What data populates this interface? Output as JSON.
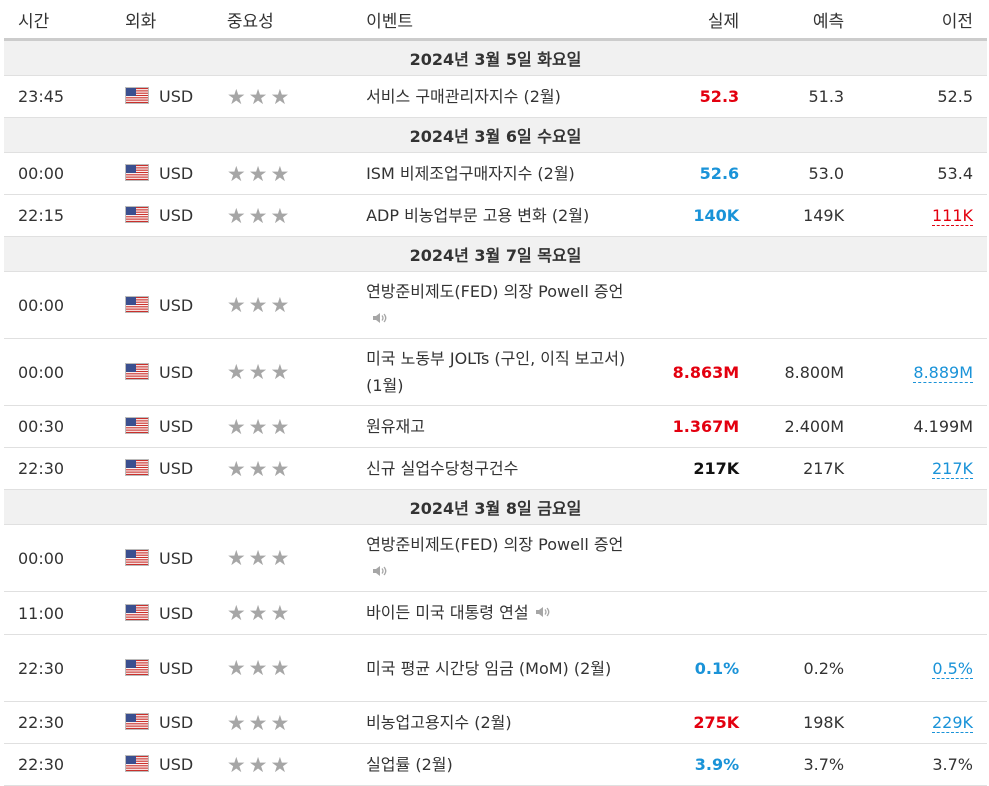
{
  "headers": {
    "time": "시간",
    "currency": "외화",
    "importance": "중요성",
    "event": "이벤트",
    "actual": "실제",
    "forecast": "예측",
    "previous": "이전"
  },
  "days": [
    {
      "label": "2024년 3월 5일 화요일",
      "rows": [
        {
          "time": "23:45",
          "currency": "USD",
          "event": "서비스 구매관리자지수 (2월)",
          "actual": "52.3",
          "forecast": "51.3",
          "previous": "52.5"
        }
      ]
    },
    {
      "label": "2024년 3월 6일 수요일",
      "rows": [
        {
          "time": "00:00",
          "currency": "USD",
          "event": "ISM 비제조업구매자지수 (2월)",
          "actual": "52.6",
          "forecast": "53.0",
          "previous": "53.4"
        },
        {
          "time": "22:15",
          "currency": "USD",
          "event": "ADP 비농업부문 고용 변화 (2월)",
          "actual": "140K",
          "forecast": "149K",
          "previous": "111K"
        }
      ]
    },
    {
      "label": "2024년 3월 7일 목요일",
      "rows": [
        {
          "time": "00:00",
          "currency": "USD",
          "event": "연방준비제도(FED) 의장 Powell 증언",
          "actual": "",
          "forecast": "",
          "previous": ""
        },
        {
          "time": "00:00",
          "currency": "USD",
          "event": "미국 노동부 JOLTs (구인, 이직 보고서) (1월)",
          "actual": "8.863M",
          "forecast": "8.800M",
          "previous": "8.889M"
        },
        {
          "time": "00:30",
          "currency": "USD",
          "event": "원유재고",
          "actual": "1.367M",
          "forecast": "2.400M",
          "previous": "4.199M"
        },
        {
          "time": "22:30",
          "currency": "USD",
          "event": "신규 실업수당청구건수",
          "actual": "217K",
          "forecast": "217K",
          "previous": "217K"
        }
      ]
    },
    {
      "label": "2024년 3월 8일 금요일",
      "rows": [
        {
          "time": "00:00",
          "currency": "USD",
          "event": "연방준비제도(FED) 의장 Powell 증언",
          "actual": "",
          "forecast": "",
          "previous": ""
        },
        {
          "time": "11:00",
          "currency": "USD",
          "event": "바이든 미국 대통령 연설",
          "actual": "",
          "forecast": "",
          "previous": ""
        },
        {
          "time": "22:30",
          "currency": "USD",
          "event": "미국 평균 시간당 임금 (MoM) (2월)",
          "actual": "0.1%",
          "forecast": "0.2%",
          "previous": "0.5%"
        },
        {
          "time": "22:30",
          "currency": "USD",
          "event": "비농업고용지수 (2월)",
          "actual": "275K",
          "forecast": "198K",
          "previous": "229K"
        },
        {
          "time": "22:30",
          "currency": "USD",
          "event": "실업률 (2월)",
          "actual": "3.9%",
          "forecast": "3.7%",
          "previous": "3.7%"
        }
      ]
    }
  ],
  "importance_stars": "★★★",
  "icons": {
    "flag": "us-flag-icon",
    "speaker": "speaker-icon",
    "star": "star-icon"
  },
  "colors": {
    "red": "#e3000f",
    "blue": "#1a93d8",
    "header_border": "#cccccc",
    "day_bg": "#f1f1f1"
  }
}
